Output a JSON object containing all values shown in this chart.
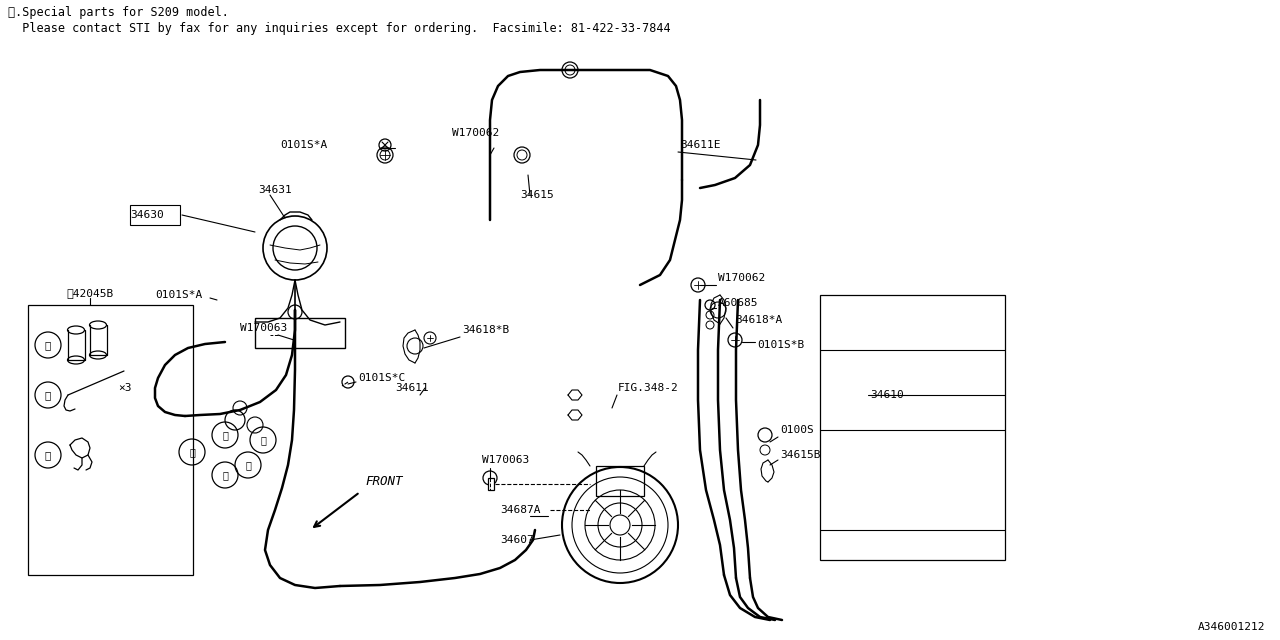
{
  "bg": "#ffffff",
  "lc": "#000000",
  "title1": "※.Special parts for S209 model.",
  "title2": "  Please contact STI by fax for any inquiries except for ordering.  Facsimile: 81-422-33-7844",
  "diagram_id": "A346001212",
  "figsize": [
    12.8,
    6.4
  ],
  "dpi": 100
}
